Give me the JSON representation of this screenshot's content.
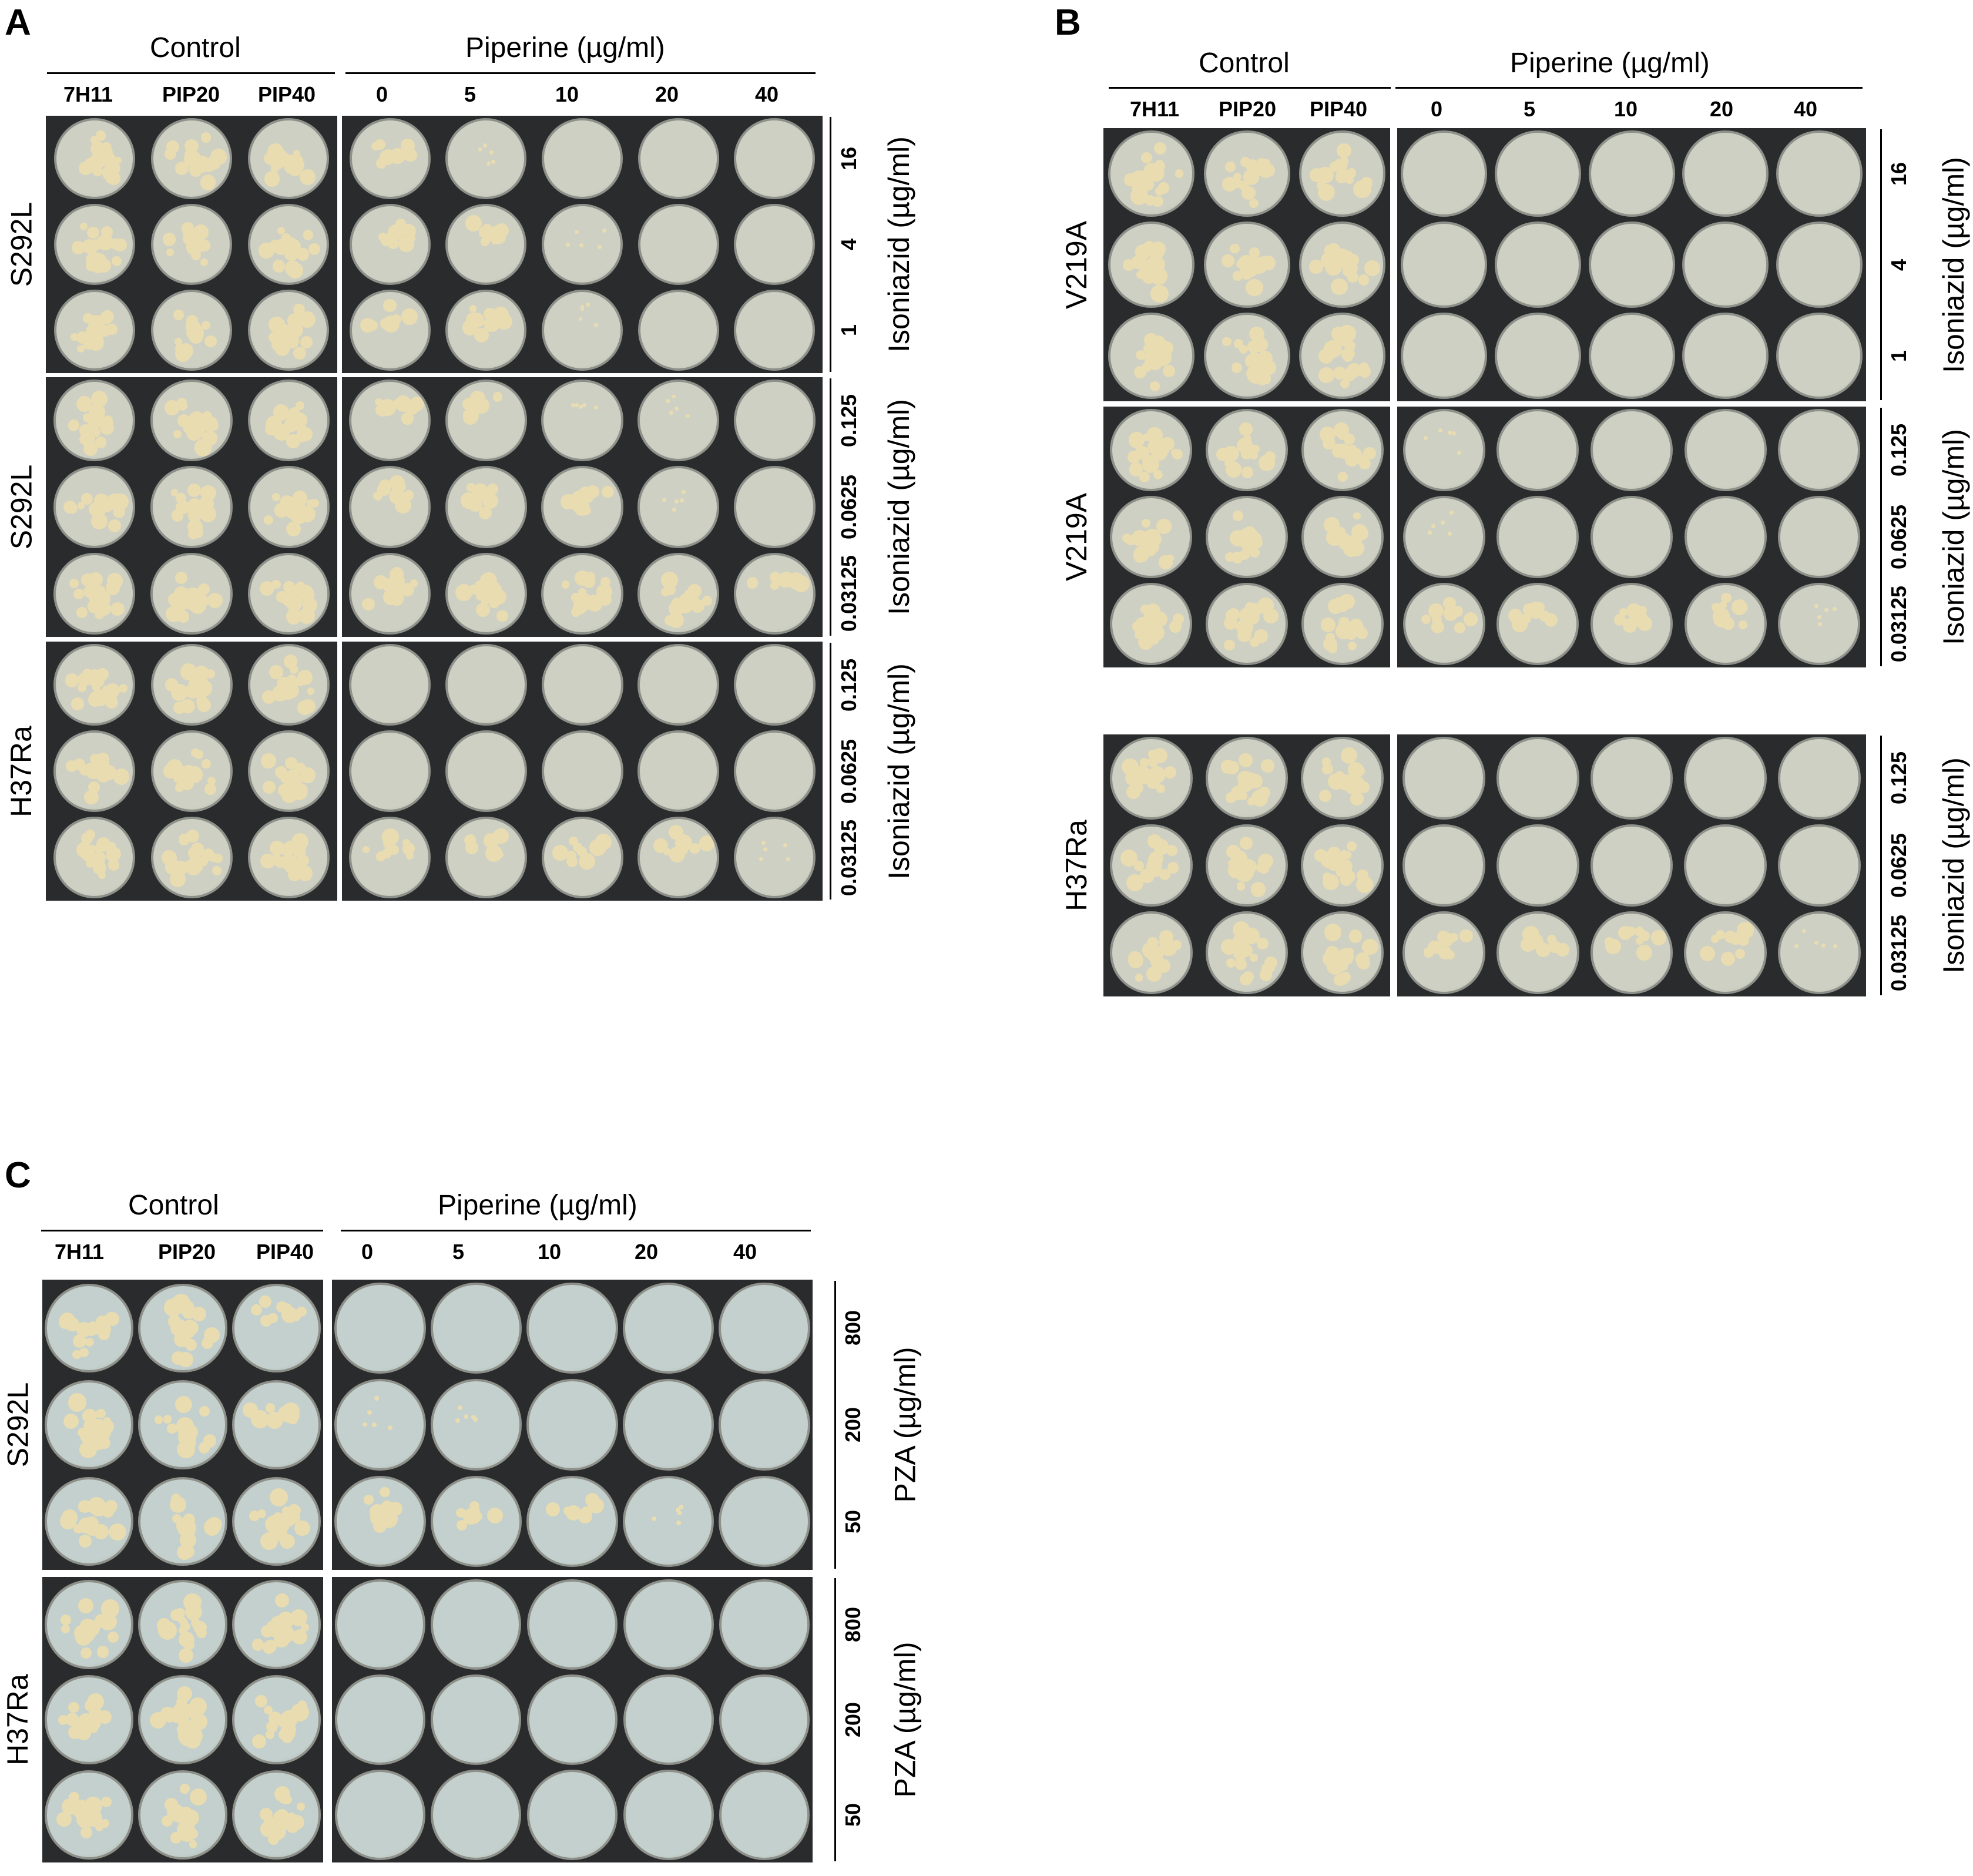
{
  "colors": {
    "panel_bg": "#2a2b2d",
    "agar_ab": "#cfd0c4",
    "agar_c": "#c3d0cd",
    "colony": "#e8dcb0",
    "white": "#ffffff"
  },
  "panels": {
    "A": {
      "label": "A",
      "control_header": "Control",
      "piperine_header": "Piperine (µg/ml)",
      "control_cols": [
        "7H11",
        "PIP20",
        "PIP40"
      ],
      "piperine_cols": [
        "0",
        "5",
        "10",
        "20",
        "40"
      ],
      "blocks": [
        {
          "strain": "S292L",
          "drug": "Isoniazid (µg/ml)",
          "concs": [
            "16",
            "4",
            "1"
          ],
          "growth": [
            [
              3,
              3,
              3,
              2,
              1,
              0,
              0,
              0
            ],
            [
              3,
              3,
              3,
              2,
              2,
              1,
              0,
              0
            ],
            [
              3,
              3,
              3,
              2,
              2,
              1,
              0,
              0
            ]
          ]
        },
        {
          "strain": "S292L",
          "drug": "Isoniazid (µg/ml)",
          "concs": [
            "0.125",
            "0.0625",
            "0.03125"
          ],
          "growth": [
            [
              3,
              3,
              3,
              2,
              2,
              1,
              1,
              0
            ],
            [
              3,
              3,
              3,
              2,
              2,
              2,
              1,
              0
            ],
            [
              3,
              3,
              3,
              3,
              3,
              3,
              3,
              2
            ]
          ]
        },
        {
          "strain": "H37Ra",
          "drug": "Isoniazid (µg/ml)",
          "concs": [
            "0.125",
            "0.0625",
            "0.03125"
          ],
          "growth": [
            [
              3,
              3,
              3,
              0,
              0,
              0,
              0,
              0
            ],
            [
              3,
              3,
              3,
              0,
              0,
              0,
              0,
              0
            ],
            [
              3,
              3,
              3,
              2,
              2,
              2,
              2,
              1
            ]
          ]
        }
      ]
    },
    "B": {
      "label": "B",
      "control_header": "Control",
      "piperine_header": "Piperine (µg/ml)",
      "control_cols": [
        "7H11",
        "PIP20",
        "PIP40"
      ],
      "piperine_cols": [
        "0",
        "5",
        "10",
        "20",
        "40"
      ],
      "blocks": [
        {
          "strain": "V219A",
          "drug": "Isoniazid (µg/ml)",
          "concs": [
            "16",
            "4",
            "1"
          ],
          "growth": [
            [
              3,
              3,
              3,
              0,
              0,
              0,
              0,
              0
            ],
            [
              3,
              3,
              3,
              0,
              0,
              0,
              0,
              0
            ],
            [
              3,
              3,
              3,
              0,
              0,
              0,
              0,
              0
            ]
          ]
        },
        {
          "strain": "V219A",
          "drug": "Isoniazid (µg/ml)",
          "concs": [
            "0.125",
            "0.0625",
            "0.03125"
          ],
          "growth": [
            [
              3,
              3,
              3,
              1,
              0,
              0,
              0,
              0
            ],
            [
              3,
              3,
              3,
              1,
              0,
              0,
              0,
              0
            ],
            [
              3,
              3,
              3,
              2,
              2,
              2,
              2,
              1
            ]
          ]
        },
        {
          "strain": "H37Ra",
          "drug": "Isoniazid (µg/ml)",
          "concs": [
            "0.125",
            "0.0625",
            "0.03125"
          ],
          "growth": [
            [
              3,
              3,
              3,
              0,
              0,
              0,
              0,
              0
            ],
            [
              3,
              3,
              3,
              0,
              0,
              0,
              0,
              0
            ],
            [
              3,
              3,
              3,
              2,
              2,
              2,
              2,
              1
            ]
          ]
        }
      ]
    },
    "C": {
      "label": "C",
      "control_header": "Control",
      "piperine_header": "Piperine (µg/ml)",
      "control_cols": [
        "7H11",
        "PIP20",
        "PIP40"
      ],
      "piperine_cols": [
        "0",
        "5",
        "10",
        "20",
        "40"
      ],
      "blocks": [
        {
          "strain": "S292L",
          "drug": "PZA (µg/ml)",
          "concs": [
            "800",
            "200",
            "50"
          ],
          "growth": [
            [
              3,
              3,
              2,
              0,
              0,
              0,
              0,
              0
            ],
            [
              3,
              3,
              2,
              1,
              1,
              0,
              0,
              0
            ],
            [
              3,
              3,
              3,
              2,
              2,
              2,
              1,
              0
            ]
          ]
        },
        {
          "strain": "H37Ra",
          "drug": "PZA (µg/ml)",
          "concs": [
            "800",
            "200",
            "50"
          ],
          "growth": [
            [
              3,
              3,
              3,
              0,
              0,
              0,
              0,
              0
            ],
            [
              3,
              3,
              3,
              0,
              0,
              0,
              0,
              0
            ],
            [
              3,
              3,
              3,
              0,
              0,
              0,
              0,
              0
            ]
          ]
        }
      ]
    }
  }
}
